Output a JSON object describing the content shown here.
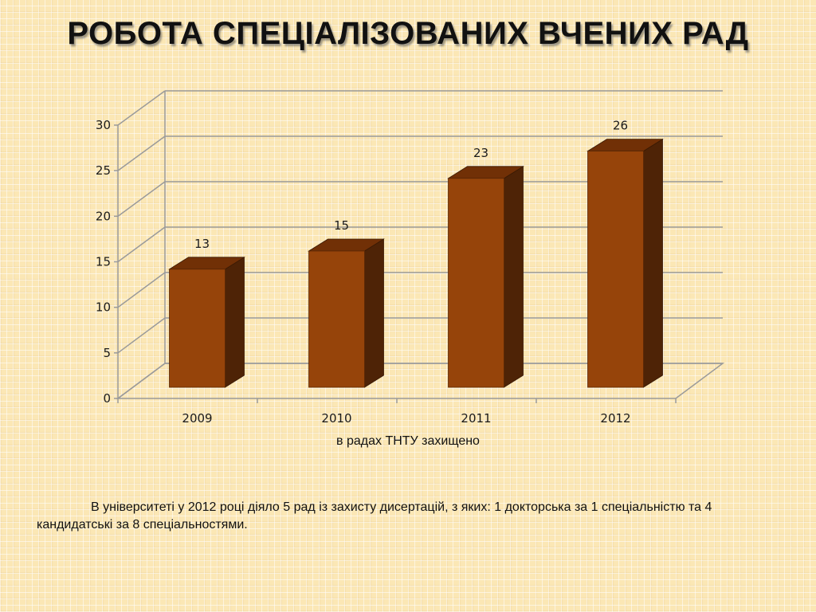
{
  "title": "РОБОТА СПЕЦІАЛІЗОВАНИХ ВЧЕНИХ РАД",
  "note": "В університеті у 2012 році діяло 5 рад із захисту дисертацій, з яких: 1 докторська за 1 спеціальністю та 4 кандидатські за 8 спеціальностями.",
  "chart_data": {
    "type": "bar",
    "style": "3d-column",
    "title": "",
    "xlabel": "в радах ТНТУ захищено",
    "ylabel": "",
    "categories": [
      "2009",
      "2010",
      "2011",
      "2012"
    ],
    "values": [
      13,
      15,
      23,
      26
    ],
    "data_labels": [
      "13",
      "15",
      "23",
      "26"
    ],
    "ylim": [
      0,
      30
    ],
    "yticks": [
      0,
      5,
      10,
      15,
      20,
      25,
      30
    ],
    "grid": true,
    "legend": "none",
    "colors": {
      "bar_front": "#96440a",
      "bar_side": "#4e2306",
      "bar_top": "#713006",
      "grid": "#9a9a9a",
      "text": "#1a1a1a"
    }
  }
}
